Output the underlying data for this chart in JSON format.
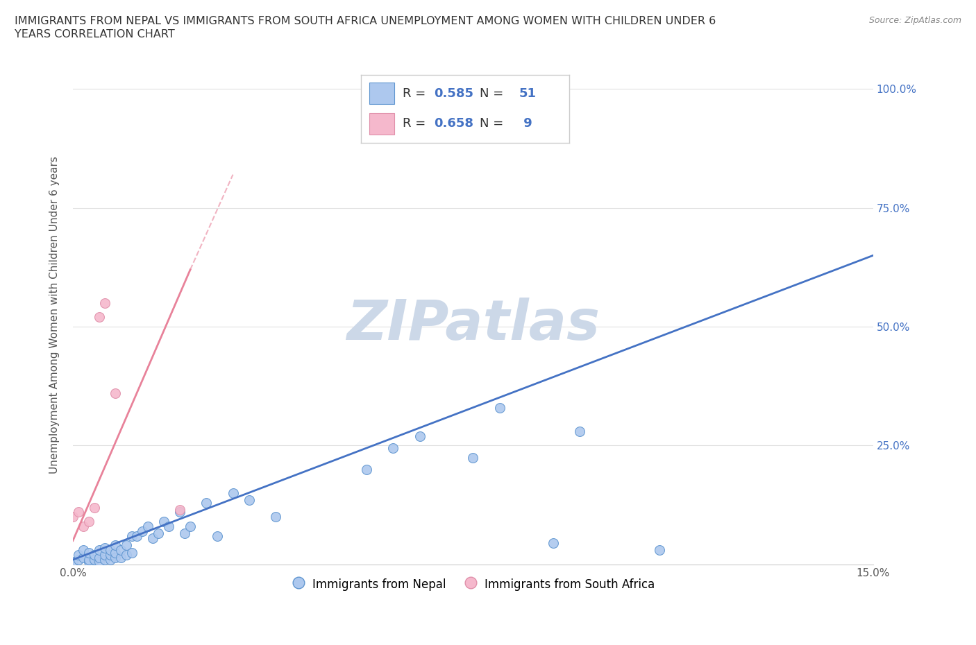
{
  "title_line1": "IMMIGRANTS FROM NEPAL VS IMMIGRANTS FROM SOUTH AFRICA UNEMPLOYMENT AMONG WOMEN WITH CHILDREN UNDER 6",
  "title_line2": "YEARS CORRELATION CHART",
  "source": "Source: ZipAtlas.com",
  "ylabel": "Unemployment Among Women with Children Under 6 years",
  "xlim": [
    0.0,
    0.15
  ],
  "ylim": [
    0.0,
    1.05
  ],
  "nepal_color": "#adc8ee",
  "nepal_edge_color": "#6096d0",
  "sa_color": "#f5b8cc",
  "sa_edge_color": "#e090aa",
  "nepal_line_color": "#4472c4",
  "sa_line_color": "#e8829a",
  "nepal_R": 0.585,
  "nepal_N": 51,
  "sa_R": 0.658,
  "sa_N": 9,
  "watermark": "ZIPatlas",
  "watermark_color": "#ccd8e8",
  "background_color": "#ffffff",
  "grid_color": "#e0e0e0",
  "nepal_x": [
    0.0,
    0.001,
    0.001,
    0.002,
    0.002,
    0.003,
    0.003,
    0.003,
    0.004,
    0.004,
    0.005,
    0.005,
    0.005,
    0.006,
    0.006,
    0.006,
    0.007,
    0.007,
    0.007,
    0.008,
    0.008,
    0.008,
    0.009,
    0.009,
    0.01,
    0.01,
    0.011,
    0.011,
    0.012,
    0.013,
    0.014,
    0.015,
    0.016,
    0.017,
    0.018,
    0.02,
    0.021,
    0.022,
    0.025,
    0.027,
    0.03,
    0.033,
    0.038,
    0.055,
    0.06,
    0.065,
    0.075,
    0.08,
    0.09,
    0.095,
    0.11
  ],
  "nepal_y": [
    0.005,
    0.01,
    0.02,
    0.015,
    0.03,
    0.005,
    0.01,
    0.025,
    0.01,
    0.02,
    0.005,
    0.015,
    0.03,
    0.01,
    0.02,
    0.035,
    0.01,
    0.02,
    0.03,
    0.015,
    0.025,
    0.04,
    0.015,
    0.03,
    0.02,
    0.04,
    0.025,
    0.06,
    0.06,
    0.07,
    0.08,
    0.055,
    0.065,
    0.09,
    0.08,
    0.11,
    0.065,
    0.08,
    0.13,
    0.06,
    0.15,
    0.135,
    0.1,
    0.2,
    0.245,
    0.27,
    0.225,
    0.33,
    0.045,
    0.28,
    0.03
  ],
  "sa_x": [
    0.0,
    0.001,
    0.002,
    0.003,
    0.004,
    0.005,
    0.006,
    0.008,
    0.02
  ],
  "sa_y": [
    0.1,
    0.11,
    0.08,
    0.09,
    0.12,
    0.52,
    0.55,
    0.36,
    0.115
  ],
  "nepal_trend_x": [
    0.0,
    0.15
  ],
  "nepal_trend_y": [
    0.01,
    0.65
  ],
  "sa_trend_x": [
    0.0,
    0.022
  ],
  "sa_trend_y": [
    0.05,
    0.62
  ]
}
